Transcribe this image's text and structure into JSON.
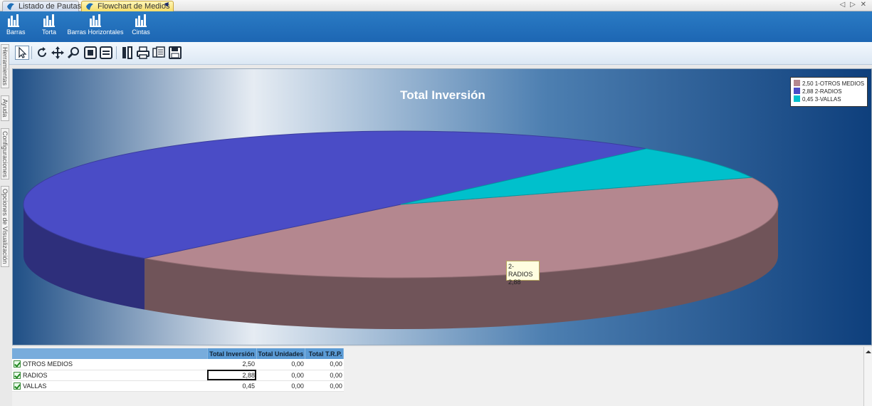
{
  "tabs": [
    {
      "label": "Listado de Pautas",
      "active": false
    },
    {
      "label": "Flowchart de Medios",
      "active": true
    }
  ],
  "ribbon": {
    "buttons": [
      {
        "label": "Barras",
        "icon": "bar-chart-icon"
      },
      {
        "label": "Torta",
        "icon": "bar-chart-icon"
      },
      {
        "label": "Barras Horizontales",
        "icon": "bar-chart-icon"
      },
      {
        "label": "Cintas",
        "icon": "bar-chart-icon"
      }
    ]
  },
  "toolbar": {
    "icons": [
      "pointer-icon",
      "rotate-icon",
      "move-icon",
      "zoom-icon",
      "copy-icon",
      "3d-icon",
      "edit-icon",
      "print-icon",
      "export-icon",
      "save-icon"
    ]
  },
  "sidepanel": {
    "tabs": [
      "Herramientas",
      "Ayuda",
      "Configuraciones",
      "Opciones de Visualización"
    ]
  },
  "chart_data": {
    "type": "pie",
    "title": "Total Inversión",
    "labels": [
      "OTROS MEDIOS",
      "RADIOS",
      "VALLAS"
    ],
    "values": [
      2.5,
      2.88,
      0.45
    ],
    "legend": {
      "position": "top-right",
      "entries": [
        "2,50 1-OTROS MEDIOS",
        "2,88 2-RADIOS",
        "0,45 3-VALLAS"
      ]
    },
    "colors": [
      "#b4878f",
      "#4a4cc6",
      "#00c0cc"
    ],
    "tooltip": {
      "line1": "2-RADIOS",
      "line2": "2,88"
    }
  },
  "grid": {
    "headers": [
      "Total Inversión",
      "Total Unidades",
      "Total T.R.P."
    ],
    "rows": [
      {
        "name": "OTROS MEDIOS",
        "inversion": "2,50",
        "unidades": "0,00",
        "trp": "0,00"
      },
      {
        "name": "RADIOS",
        "inversion": "2,88",
        "unidades": "0,00",
        "trp": "0,00"
      },
      {
        "name": "VALLAS",
        "inversion": "0,45",
        "unidades": "0,00",
        "trp": "0,00"
      }
    ]
  }
}
